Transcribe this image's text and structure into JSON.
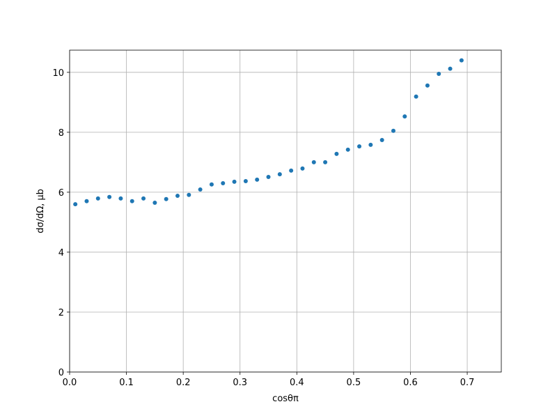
{
  "chart_data": {
    "type": "scatter",
    "x_label": "cosθπ",
    "y_label": "dσ/dΩ, μb",
    "x": [
      0.01,
      0.03,
      0.05,
      0.07,
      0.09,
      0.11,
      0.13,
      0.15,
      0.17,
      0.19,
      0.21,
      0.23,
      0.25,
      0.27,
      0.29,
      0.31,
      0.33,
      0.35,
      0.37,
      0.39,
      0.41,
      0.43,
      0.45,
      0.47,
      0.49,
      0.51,
      0.53,
      0.55,
      0.57,
      0.59,
      0.61,
      0.63,
      0.65,
      0.67,
      0.69
    ],
    "values": [
      5.6,
      5.7,
      5.79,
      5.84,
      5.79,
      5.7,
      5.79,
      5.65,
      5.77,
      5.88,
      5.91,
      6.09,
      6.26,
      6.3,
      6.35,
      6.37,
      6.42,
      6.51,
      6.6,
      6.72,
      6.79,
      7.0,
      7.0,
      7.28,
      7.42,
      7.53,
      7.58,
      7.74,
      8.05,
      8.53,
      9.19,
      9.56,
      9.95,
      10.12,
      10.4
    ],
    "color": "#1f77b4",
    "xlim": [
      0,
      0.76
    ],
    "ylim": [
      0,
      10.74
    ],
    "xticks": [
      {
        "value": 0,
        "label": "0.0"
      },
      0.1,
      0.2,
      0.3,
      0.4,
      0.5,
      0.6,
      0.7
    ],
    "yticks": [
      0,
      2,
      4,
      6,
      8,
      10
    ],
    "grid": true
  }
}
